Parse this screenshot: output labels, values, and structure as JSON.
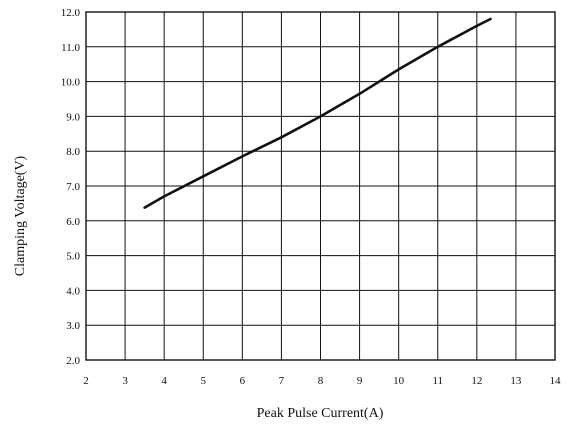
{
  "chart_data": {
    "type": "line",
    "xlabel": "Peak Pulse Current(A)",
    "ylabel": "Clamping Voltage(V)",
    "xlim": [
      2,
      14
    ],
    "ylim": [
      2.0,
      12.0
    ],
    "x_ticks": [
      "2",
      "3",
      "4",
      "5",
      "6",
      "7",
      "8",
      "9",
      "10",
      "11",
      "12",
      "13",
      "14"
    ],
    "y_ticks": [
      "2.0",
      "3.0",
      "4.0",
      "5.0",
      "6.0",
      "7.0",
      "8.0",
      "9.0",
      "10.0",
      "11.0",
      "12.0"
    ],
    "grid": true,
    "series": [
      {
        "x": [
          3.5,
          4.0,
          5.0,
          6.0,
          7.0,
          8.0,
          9.0,
          10.0,
          11.0,
          12.0,
          12.35
        ],
        "values": [
          6.38,
          6.7,
          7.28,
          7.85,
          8.4,
          9.0,
          9.65,
          10.35,
          11.0,
          11.6,
          11.8
        ]
      }
    ]
  }
}
